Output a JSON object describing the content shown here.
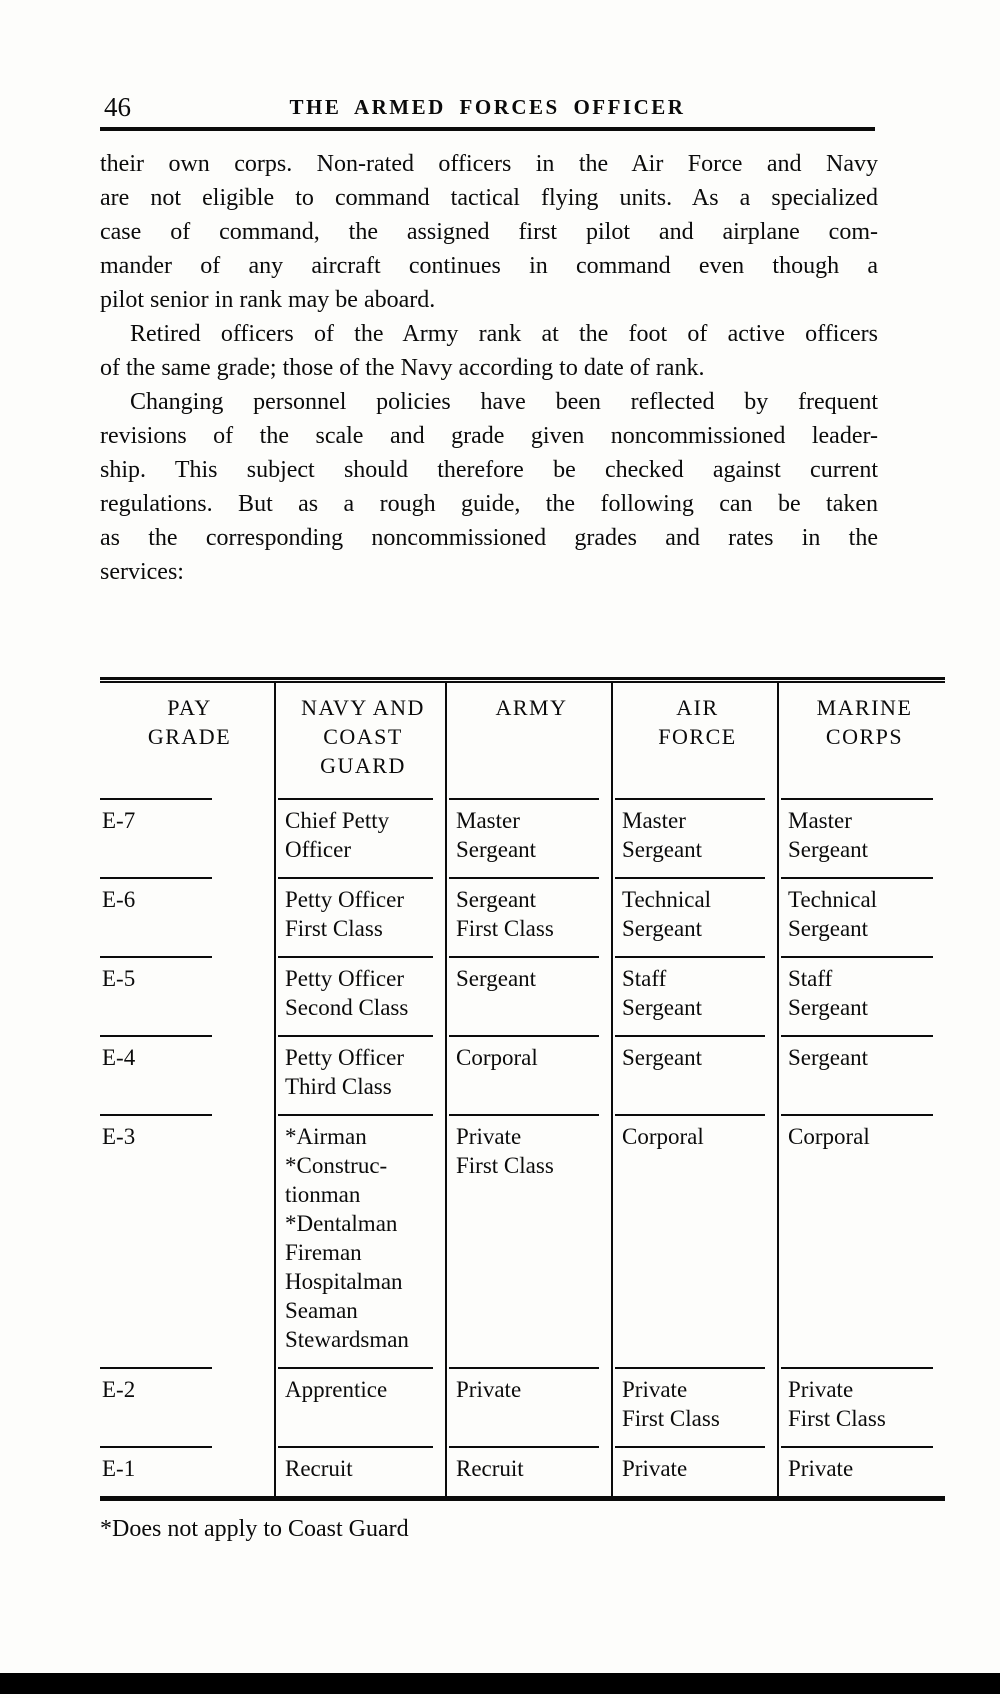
{
  "page": {
    "number": "46",
    "running_title": "THE ARMED FORCES OFFICER"
  },
  "body": {
    "paragraphs": [
      {
        "indent": false,
        "lines": [
          "their own corps. Non-rated officers in the Air Force and Navy",
          "are not eligible to command tactical flying units. As a specialized",
          "case of command, the assigned first pilot and airplane com-",
          "mander of any aircraft continues in command even though a",
          "pilot senior in rank may be aboard."
        ]
      },
      {
        "indent": true,
        "lines": [
          "Retired officers of the Army rank at the foot of active officers",
          "of the same grade; those of the Navy according to date of rank."
        ]
      },
      {
        "indent": true,
        "lines": [
          "Changing personnel policies have been reflected by frequent",
          "revisions of the scale and grade given noncommissioned leader-",
          "ship. This subject should therefore be checked against current",
          "regulations. But as a rough guide, the following can be taken",
          "as the corresponding noncommissioned grades and rates in the",
          "services:"
        ]
      }
    ]
  },
  "table": {
    "headers": [
      "PAY\nGRADE",
      "NAVY AND\nCOAST\nGUARD",
      "ARMY",
      "AIR\nFORCE",
      "MARINE\nCORPS"
    ],
    "column_keys": [
      "grade",
      "navy_coast_guard",
      "army",
      "air_force",
      "marine_corps"
    ],
    "rows": [
      {
        "grade": "E-7",
        "navy_coast_guard": "Chief Petty\nOfficer",
        "army": "Master\nSergeant",
        "air_force": "Master\nSergeant",
        "marine_corps": "Master\nSergeant"
      },
      {
        "grade": "E-6",
        "navy_coast_guard": "Petty Officer\nFirst Class",
        "army": "Sergeant\nFirst Class",
        "air_force": "Technical\nSergeant",
        "marine_corps": "Technical\nSergeant"
      },
      {
        "grade": "E-5",
        "navy_coast_guard": "Petty Officer\nSecond Class",
        "army": "Sergeant",
        "air_force": "Staff\nSergeant",
        "marine_corps": "Staff\nSergeant"
      },
      {
        "grade": "E-4",
        "navy_coast_guard": "Petty Officer\nThird Class",
        "army": "Corporal",
        "air_force": "Sergeant",
        "marine_corps": "Sergeant"
      },
      {
        "grade": "E-3",
        "navy_coast_guard": "*Airman\n*Construc-\ntionman\n*Dentalman\nFireman\nHospitalman\nSeaman\nStewardsman",
        "army": "Private\nFirst Class",
        "air_force": "Corporal",
        "marine_corps": "Corporal"
      },
      {
        "grade": "E-2",
        "navy_coast_guard": "Apprentice",
        "army": "Private",
        "air_force": "Private\nFirst Class",
        "marine_corps": "Private\nFirst Class"
      },
      {
        "grade": "E-1",
        "navy_coast_guard": "Recruit",
        "army": "Recruit",
        "air_force": "Private",
        "marine_corps": "Private"
      }
    ],
    "footnote": "*Does not apply to Coast Guard"
  }
}
